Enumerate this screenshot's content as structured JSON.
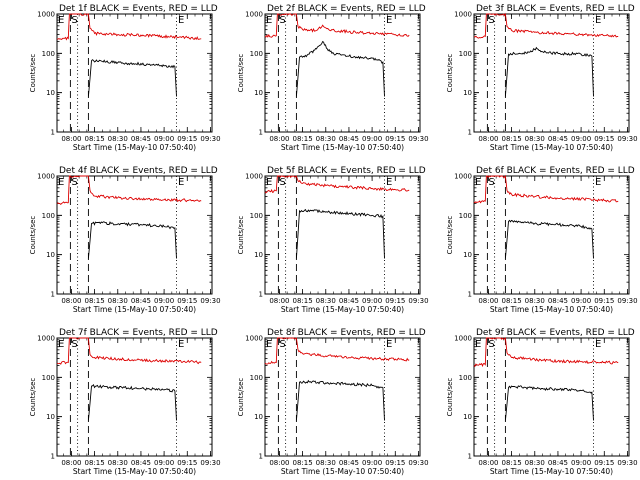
{
  "figure": {
    "background": "#ffffff"
  },
  "colors": {
    "events": "#000000",
    "lld": "#dd0000",
    "axis": "#000000"
  },
  "chart_data": [
    {
      "type": "line",
      "title": "Det 1f BLACK = Events, RED = LLD",
      "ylabel": "Counts/sec",
      "xlabel": "Start Time (15-May-10 07:50:40)",
      "x_tick_labels": [
        "08:00",
        "08:15",
        "08:30",
        "08:45",
        "09:00",
        "09:15",
        "09:30"
      ],
      "y_tick_labels": [
        "1",
        "10",
        "100",
        "1000"
      ],
      "yscale": "log",
      "ylim": [
        1,
        1000
      ],
      "xlim": [
        "07:50:40",
        "09:31:00"
      ],
      "vlines_dashed": [
        "07:59:20",
        "08:11:00"
      ],
      "vlines_dotted": [
        "08:04:00",
        "09:08:00"
      ],
      "markers": [
        {
          "label": "E",
          "at": "07:51:00"
        },
        {
          "label": "S",
          "at": "07:59:40"
        },
        {
          "label": "E",
          "at": "09:08:40"
        }
      ],
      "series": [
        {
          "name": "Events",
          "color": "#000000",
          "x": [
            "08:11:00",
            "08:13",
            "08:20",
            "08:30",
            "08:40",
            "08:50",
            "09:00",
            "09:07",
            "09:08:00"
          ],
          "y": [
            8,
            65,
            62,
            58,
            55,
            52,
            48,
            46,
            8
          ]
        },
        {
          "name": "LLD",
          "color": "#dd0000",
          "x": [
            "07:50:40",
            "07:58:00",
            "07:58:40",
            "07:59:20",
            "08:11:00",
            "08:12:00",
            "08:15",
            "08:30",
            "08:45",
            "09:00",
            "09:15",
            "09:24"
          ],
          "y": [
            230,
            240,
            1000,
            1000,
            1000,
            430,
            320,
            300,
            290,
            270,
            250,
            235
          ]
        }
      ]
    },
    {
      "type": "line",
      "title": "Det 2f BLACK = Events, RED = LLD",
      "ylabel": "Counts/sec",
      "xlabel": "Start Time (15-May-10 07:50:40)",
      "x_tick_labels": [
        "08:00",
        "08:15",
        "08:30",
        "08:45",
        "09:00",
        "09:15",
        "09:30"
      ],
      "y_tick_labels": [
        "1",
        "10",
        "100",
        "1000"
      ],
      "yscale": "log",
      "ylim": [
        1,
        1000
      ],
      "xlim": [
        "07:50:40",
        "09:31:00"
      ],
      "vlines_dashed": [
        "07:59:20",
        "08:11:00"
      ],
      "vlines_dotted": [
        "08:04:00",
        "09:08:00"
      ],
      "markers": [
        {
          "label": "E",
          "at": "07:51:00"
        },
        {
          "label": "S",
          "at": "07:59:40"
        },
        {
          "label": "E",
          "at": "09:08:40"
        }
      ],
      "series": [
        {
          "name": "Events",
          "color": "#000000",
          "x": [
            "08:11:00",
            "08:13",
            "08:18",
            "08:24",
            "08:28",
            "08:31",
            "08:34",
            "08:40",
            "08:50",
            "09:00",
            "09:07",
            "09:08:00"
          ],
          "y": [
            8,
            80,
            90,
            130,
            200,
            130,
            100,
            90,
            80,
            75,
            60,
            8
          ]
        },
        {
          "name": "LLD",
          "color": "#dd0000",
          "x": [
            "07:50:40",
            "07:58:00",
            "07:58:40",
            "07:59:20",
            "08:11:00",
            "08:12:00",
            "08:15",
            "08:24",
            "08:28",
            "08:32",
            "08:45",
            "09:00",
            "09:15",
            "09:24"
          ],
          "y": [
            270,
            280,
            1000,
            1000,
            1000,
            480,
            400,
            380,
            520,
            400,
            350,
            320,
            300,
            290
          ]
        }
      ]
    },
    {
      "type": "line",
      "title": "Det 3f BLACK = Events, RED = LLD",
      "ylabel": "Counts/sec",
      "xlabel": "Start Time (15-May-10 07:50:40)",
      "x_tick_labels": [
        "08:00",
        "08:15",
        "08:30",
        "08:45",
        "09:00",
        "09:15",
        "09:30"
      ],
      "y_tick_labels": [
        "1",
        "10",
        "100",
        "1000"
      ],
      "yscale": "log",
      "ylim": [
        1,
        1000
      ],
      "xlim": [
        "07:50:40",
        "09:31:00"
      ],
      "vlines_dashed": [
        "07:59:20",
        "08:11:00"
      ],
      "vlines_dotted": [
        "08:04:00",
        "09:08:00"
      ],
      "markers": [
        {
          "label": "E",
          "at": "07:51:00"
        },
        {
          "label": "S",
          "at": "07:59:40"
        },
        {
          "label": "E",
          "at": "09:08:40"
        }
      ],
      "series": [
        {
          "name": "Events",
          "color": "#000000",
          "x": [
            "08:11:00",
            "08:13",
            "08:20",
            "08:28",
            "08:31",
            "08:34",
            "08:45",
            "09:00",
            "09:07",
            "09:08:00"
          ],
          "y": [
            8,
            95,
            100,
            110,
            140,
            110,
            100,
            95,
            85,
            8
          ]
        },
        {
          "name": "LLD",
          "color": "#dd0000",
          "x": [
            "07:50:40",
            "07:58:00",
            "07:58:40",
            "07:59:20",
            "08:11:00",
            "08:12:00",
            "08:15",
            "08:30",
            "08:45",
            "09:00",
            "09:15",
            "09:24"
          ],
          "y": [
            260,
            270,
            1000,
            1000,
            1000,
            480,
            380,
            340,
            320,
            300,
            280,
            270
          ]
        }
      ]
    },
    {
      "type": "line",
      "title": "Det 4f BLACK = Events, RED = LLD",
      "ylabel": "Counts/sec",
      "xlabel": "Start Time (15-May-10 07:50:40)",
      "x_tick_labels": [
        "08:00",
        "08:15",
        "08:30",
        "08:45",
        "09:00",
        "09:15",
        "09:30"
      ],
      "y_tick_labels": [
        "1",
        "10",
        "100",
        "1000"
      ],
      "yscale": "log",
      "ylim": [
        1,
        1000
      ],
      "xlim": [
        "07:50:40",
        "09:31:00"
      ],
      "vlines_dashed": [
        "07:59:20",
        "08:11:00"
      ],
      "vlines_dotted": [
        "08:04:00",
        "09:08:00"
      ],
      "markers": [
        {
          "label": "E",
          "at": "07:51:00"
        },
        {
          "label": "S",
          "at": "07:59:40"
        },
        {
          "label": "E",
          "at": "09:08:40"
        }
      ],
      "series": [
        {
          "name": "Events",
          "color": "#000000",
          "x": [
            "08:11:00",
            "08:13",
            "08:20",
            "08:30",
            "08:45",
            "09:00",
            "09:07",
            "09:08:00"
          ],
          "y": [
            8,
            62,
            65,
            60,
            58,
            52,
            48,
            8
          ]
        },
        {
          "name": "LLD",
          "color": "#dd0000",
          "x": [
            "07:50:40",
            "07:58:00",
            "07:58:40",
            "07:59:20",
            "08:11:00",
            "08:12:00",
            "08:15",
            "08:30",
            "08:45",
            "09:00",
            "09:15",
            "09:24"
          ],
          "y": [
            200,
            210,
            1000,
            1000,
            1000,
            430,
            310,
            280,
            260,
            250,
            240,
            230
          ]
        }
      ]
    },
    {
      "type": "line",
      "title": "Det 5f BLACK = Events, RED = LLD",
      "ylabel": "Counts/sec",
      "xlabel": "Start Time (15-May-10 07:50:40)",
      "x_tick_labels": [
        "08:00",
        "08:15",
        "08:30",
        "08:45",
        "09:00",
        "09:15",
        "09:30"
      ],
      "y_tick_labels": [
        "1",
        "10",
        "100",
        "1000"
      ],
      "yscale": "log",
      "ylim": [
        1,
        1000
      ],
      "xlim": [
        "07:50:40",
        "09:31:00"
      ],
      "vlines_dashed": [
        "07:59:20",
        "08:11:00"
      ],
      "vlines_dotted": [
        "08:04:00",
        "09:08:00"
      ],
      "markers": [
        {
          "label": "E",
          "at": "07:51:00"
        },
        {
          "label": "S",
          "at": "07:59:40"
        },
        {
          "label": "E",
          "at": "09:08:40"
        }
      ],
      "series": [
        {
          "name": "Events",
          "color": "#000000",
          "x": [
            "08:11:00",
            "08:13",
            "08:20",
            "08:30",
            "08:45",
            "09:00",
            "09:07",
            "09:08:00"
          ],
          "y": [
            8,
            130,
            135,
            120,
            110,
            100,
            95,
            8
          ]
        },
        {
          "name": "LLD",
          "color": "#dd0000",
          "x": [
            "07:50:40",
            "07:58:00",
            "07:58:40",
            "07:59:20",
            "08:11:00",
            "08:12:00",
            "08:15",
            "08:30",
            "08:45",
            "09:00",
            "09:15",
            "09:24"
          ],
          "y": [
            400,
            420,
            1000,
            1000,
            1000,
            750,
            650,
            570,
            520,
            480,
            450,
            440
          ]
        }
      ]
    },
    {
      "type": "line",
      "title": "Det 6f BLACK = Events, RED = LLD",
      "ylabel": "Counts/sec",
      "xlabel": "Start Time (15-May-10 07:50:40)",
      "x_tick_labels": [
        "08:00",
        "08:15",
        "08:30",
        "08:45",
        "09:00",
        "09:15",
        "09:30"
      ],
      "y_tick_labels": [
        "1",
        "10",
        "100",
        "1000"
      ],
      "yscale": "log",
      "ylim": [
        1,
        1000
      ],
      "xlim": [
        "07:50:40",
        "09:31:00"
      ],
      "vlines_dashed": [
        "07:59:20",
        "08:11:00"
      ],
      "vlines_dotted": [
        "08:04:00",
        "09:08:00"
      ],
      "markers": [
        {
          "label": "E",
          "at": "07:51:00"
        },
        {
          "label": "S",
          "at": "07:59:40"
        },
        {
          "label": "E",
          "at": "09:08:40"
        }
      ],
      "series": [
        {
          "name": "Events",
          "color": "#000000",
          "x": [
            "08:11:00",
            "08:13",
            "08:20",
            "08:30",
            "08:45",
            "09:00",
            "09:07",
            "09:08:00"
          ],
          "y": [
            8,
            70,
            68,
            62,
            58,
            52,
            45,
            8
          ]
        },
        {
          "name": "LLD",
          "color": "#dd0000",
          "x": [
            "07:50:40",
            "07:58:00",
            "07:58:40",
            "07:59:20",
            "08:11:00",
            "08:12:00",
            "08:15",
            "08:30",
            "08:45",
            "09:00",
            "09:15",
            "09:24"
          ],
          "y": [
            220,
            230,
            1000,
            1000,
            1000,
            430,
            340,
            300,
            270,
            260,
            240,
            230
          ]
        }
      ]
    },
    {
      "type": "line",
      "title": "Det 7f BLACK = Events, RED = LLD",
      "ylabel": "Counts/sec",
      "xlabel": "Start Time (15-May-10 07:50:40)",
      "x_tick_labels": [
        "08:00",
        "08:15",
        "08:30",
        "08:45",
        "09:00",
        "09:15",
        "09:30"
      ],
      "y_tick_labels": [
        "1",
        "10",
        "100",
        "1000"
      ],
      "yscale": "log",
      "ylim": [
        1,
        1000
      ],
      "xlim": [
        "07:50:40",
        "09:31:00"
      ],
      "vlines_dashed": [
        "07:59:20",
        "08:11:00"
      ],
      "vlines_dotted": [
        "08:04:00",
        "09:08:00"
      ],
      "markers": [
        {
          "label": "E",
          "at": "07:51:00"
        },
        {
          "label": "S",
          "at": "07:59:40"
        },
        {
          "label": "E",
          "at": "09:08:40"
        }
      ],
      "series": [
        {
          "name": "Events",
          "color": "#000000",
          "x": [
            "08:11:00",
            "08:13",
            "08:20",
            "08:30",
            "08:45",
            "09:00",
            "09:07",
            "09:08:00"
          ],
          "y": [
            8,
            60,
            58,
            55,
            52,
            48,
            45,
            8
          ]
        },
        {
          "name": "LLD",
          "color": "#dd0000",
          "x": [
            "07:50:40",
            "07:58:00",
            "07:58:40",
            "07:59:20",
            "08:11:00",
            "08:12:00",
            "08:15",
            "08:30",
            "08:45",
            "09:00",
            "09:15",
            "09:24"
          ],
          "y": [
            230,
            240,
            1000,
            1000,
            1000,
            380,
            320,
            290,
            270,
            260,
            250,
            240
          ]
        }
      ]
    },
    {
      "type": "line",
      "title": "Det 8f BLACK = Events, RED = LLD",
      "ylabel": "Counts/sec",
      "xlabel": "Start Time (15-May-10 07:50:40)",
      "x_tick_labels": [
        "08:00",
        "08:15",
        "08:30",
        "08:45",
        "09:00",
        "09:15",
        "09:30"
      ],
      "y_tick_labels": [
        "1",
        "10",
        "100",
        "1000"
      ],
      "yscale": "log",
      "ylim": [
        1,
        1000
      ],
      "xlim": [
        "07:50:40",
        "09:31:00"
      ],
      "vlines_dashed": [
        "07:59:20",
        "08:11:00"
      ],
      "vlines_dotted": [
        "08:04:00",
        "09:08:00"
      ],
      "markers": [
        {
          "label": "E",
          "at": "07:51:00"
        },
        {
          "label": "S",
          "at": "07:59:40"
        },
        {
          "label": "E",
          "at": "09:08:40"
        }
      ],
      "series": [
        {
          "name": "Events",
          "color": "#000000",
          "x": [
            "08:11:00",
            "08:13",
            "08:20",
            "08:30",
            "08:45",
            "09:00",
            "09:07",
            "09:08:00"
          ],
          "y": [
            8,
            75,
            78,
            72,
            68,
            62,
            55,
            8
          ]
        },
        {
          "name": "LLD",
          "color": "#dd0000",
          "x": [
            "07:50:40",
            "07:58:00",
            "07:58:40",
            "07:59:20",
            "08:11:00",
            "08:12:00",
            "08:15",
            "08:30",
            "08:45",
            "09:00",
            "09:15",
            "09:24"
          ],
          "y": [
            230,
            240,
            1000,
            1000,
            1000,
            500,
            400,
            350,
            320,
            300,
            290,
            280
          ]
        }
      ]
    },
    {
      "type": "line",
      "title": "Det 9f BLACK = Events, RED = LLD",
      "ylabel": "Counts/sec",
      "xlabel": "Start Time (15-May-10 07:50:40)",
      "x_tick_labels": [
        "08:00",
        "08:15",
        "08:30",
        "08:45",
        "09:00",
        "09:15",
        "09:30"
      ],
      "y_tick_labels": [
        "1",
        "10",
        "100",
        "1000"
      ],
      "yscale": "log",
      "ylim": [
        1,
        1000
      ],
      "xlim": [
        "07:50:40",
        "09:31:00"
      ],
      "vlines_dashed": [
        "07:59:20",
        "08:11:00"
      ],
      "vlines_dotted": [
        "08:04:00",
        "09:08:00"
      ],
      "markers": [
        {
          "label": "E",
          "at": "07:51:00"
        },
        {
          "label": "S",
          "at": "07:59:40"
        },
        {
          "label": "E",
          "at": "09:08:40"
        }
      ],
      "series": [
        {
          "name": "Events",
          "color": "#000000",
          "x": [
            "08:11:00",
            "08:13",
            "08:20",
            "08:30",
            "08:45",
            "09:00",
            "09:07",
            "09:08:00"
          ],
          "y": [
            8,
            55,
            58,
            52,
            50,
            46,
            42,
            8
          ]
        },
        {
          "name": "LLD",
          "color": "#dd0000",
          "x": [
            "07:50:40",
            "07:58:00",
            "07:58:40",
            "07:59:20",
            "08:11:00",
            "08:12:00",
            "08:15",
            "08:30",
            "08:45",
            "09:00",
            "09:15",
            "09:24"
          ],
          "y": [
            200,
            210,
            1000,
            1000,
            1000,
            420,
            320,
            280,
            260,
            250,
            240,
            235
          ]
        }
      ]
    }
  ]
}
